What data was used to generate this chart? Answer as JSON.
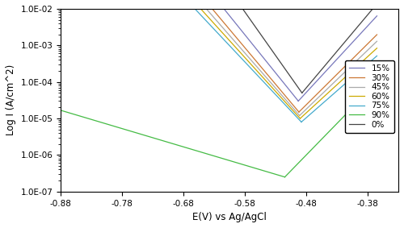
{
  "title": "",
  "xlabel": "E(V) vs Ag/AgCl",
  "ylabel": "Log I (A/cm^2)",
  "xlim": [
    -0.88,
    -0.33
  ],
  "ylim_log": [
    1e-07,
    0.01
  ],
  "xticks": [
    -0.88,
    -0.78,
    -0.68,
    -0.58,
    -0.48,
    -0.38
  ],
  "series": [
    {
      "label": "15%",
      "color": "#7777bb",
      "Ecorr": -0.493,
      "Icorr": 3e-05,
      "ba": 0.055,
      "bc": 0.048,
      "Estart_cathodic": -0.88,
      "Estart_anodic": -0.365
    },
    {
      "label": "30%",
      "color": "#cc7733",
      "Ecorr": -0.492,
      "Icorr": 1.5e-05,
      "ba": 0.06,
      "bc": 0.05,
      "Estart_cathodic": -0.88,
      "Estart_anodic": -0.365
    },
    {
      "label": "45%",
      "color": "#aaaaaa",
      "Ecorr": -0.491,
      "Icorr": 1.2e-05,
      "ba": 0.062,
      "bc": 0.052,
      "Estart_cathodic": -0.88,
      "Estart_anodic": -0.365
    },
    {
      "label": "60%",
      "color": "#ccaa00",
      "Ecorr": -0.49,
      "Icorr": 1e-05,
      "ba": 0.065,
      "bc": 0.054,
      "Estart_cathodic": -0.88,
      "Estart_anodic": -0.365
    },
    {
      "label": "75%",
      "color": "#44aacc",
      "Ecorr": -0.488,
      "Icorr": 8e-06,
      "ba": 0.068,
      "bc": 0.056,
      "Estart_cathodic": -0.88,
      "Estart_anodic": -0.365
    },
    {
      "label": "90%",
      "color": "#44bb44",
      "Ecorr": -0.515,
      "Icorr": 2.5e-07,
      "ba": 0.058,
      "bc": 0.2,
      "Estart_cathodic": -0.88,
      "Estart_anodic": -0.365
    },
    {
      "label": "0%",
      "color": "#444444",
      "Ecorr": -0.487,
      "Icorr": 5e-05,
      "ba": 0.05,
      "bc": 0.042,
      "Estart_cathodic": -0.88,
      "Estart_anodic": -0.365
    }
  ],
  "legend_fontsize": 7.5,
  "axis_fontsize": 8.5,
  "tick_fontsize": 7.5,
  "clip_max": 0.01,
  "clip_min": 1e-07
}
